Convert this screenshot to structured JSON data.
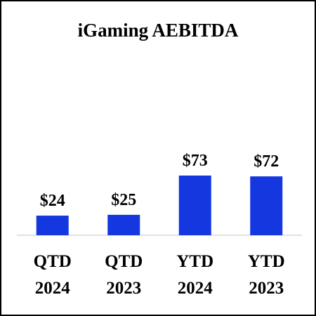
{
  "chart_data": {
    "type": "bar",
    "title": "iGaming AEBITDA",
    "categories": [
      [
        "QTD",
        "2024"
      ],
      [
        "QTD",
        "2023"
      ],
      [
        "YTD",
        "2024"
      ],
      [
        "YTD",
        "2023"
      ]
    ],
    "values": [
      24,
      25,
      73,
      72
    ],
    "data_labels": [
      "$24",
      "$25",
      "$73",
      "$72"
    ],
    "ylim": [
      0,
      100
    ],
    "grid": false,
    "legend": "none",
    "colors": {
      "bar": "#1437E0",
      "axis": "#D9D9D9",
      "text": "#000000"
    }
  }
}
